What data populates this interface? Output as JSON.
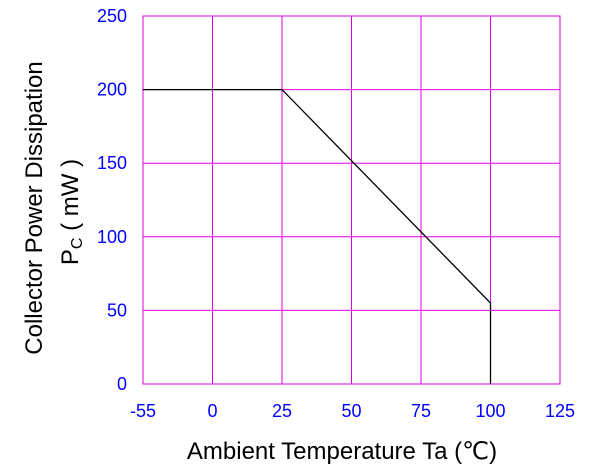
{
  "chart_data": {
    "type": "line",
    "title": "",
    "xlabel": "Ambient Temperature Ta (℃)",
    "ylabel_line1": "Collector Power Dissipation",
    "ylabel_line2_main": "P",
    "ylabel_line2_sub": "C",
    "ylabel_line2_rest": " ( mW )",
    "xlim": [
      -55,
      125
    ],
    "ylim": [
      0,
      250
    ],
    "x_ticks": [
      -55,
      0,
      25,
      50,
      75,
      100,
      125
    ],
    "y_ticks": [
      0,
      50,
      100,
      150,
      200,
      250
    ],
    "grid": true,
    "series": [
      {
        "x": [
          -55,
          25,
          100,
          100
        ],
        "y": [
          200,
          200,
          55,
          0
        ]
      }
    ],
    "colors": {
      "grid": "#e000e0",
      "tick_labels": "#0000ff",
      "line": "#000000",
      "axis_title": "#000000"
    }
  }
}
